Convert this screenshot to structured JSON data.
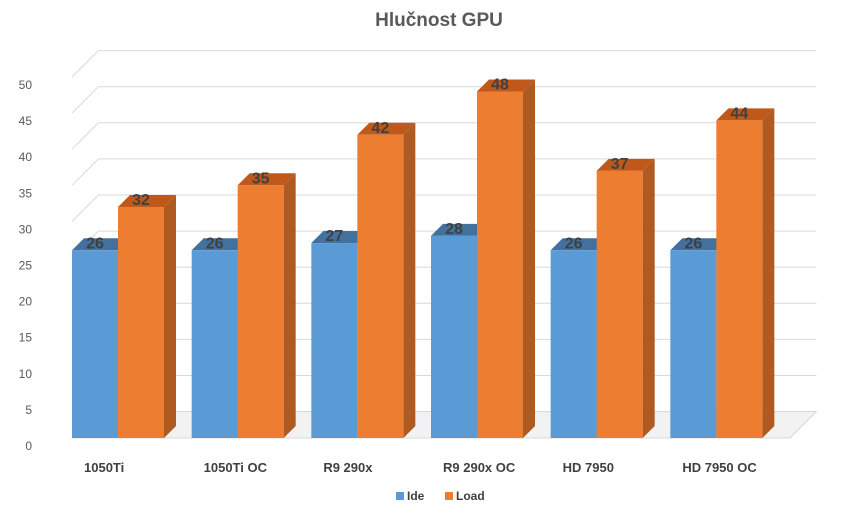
{
  "chart_data": {
    "type": "bar",
    "title": "Hlučnost GPU",
    "categories": [
      "1050Ti",
      "1050Ti OC",
      "R9 290x",
      "R9 290x OC",
      "HD 7950",
      "HD 7950 OC"
    ],
    "series": [
      {
        "name": "Ide",
        "values": [
          26,
          26,
          27,
          28,
          26,
          26
        ],
        "color": "#5B9BD5",
        "color_top": "#41719C",
        "color_side": "#3E6F9E"
      },
      {
        "name": "Load",
        "values": [
          32,
          35,
          42,
          48,
          37,
          44
        ],
        "color": "#ED7D31",
        "color_top": "#C0581A",
        "color_side": "#AE5A21"
      }
    ],
    "ylim": [
      0,
      50
    ],
    "ytick_step": 5,
    "yticks": [
      "0",
      "5",
      "10",
      "15",
      "20",
      "25",
      "30",
      "35",
      "40",
      "45",
      "50"
    ],
    "grid": true,
    "style_3d": true,
    "legend_position": "bottom",
    "data_labels": true
  }
}
